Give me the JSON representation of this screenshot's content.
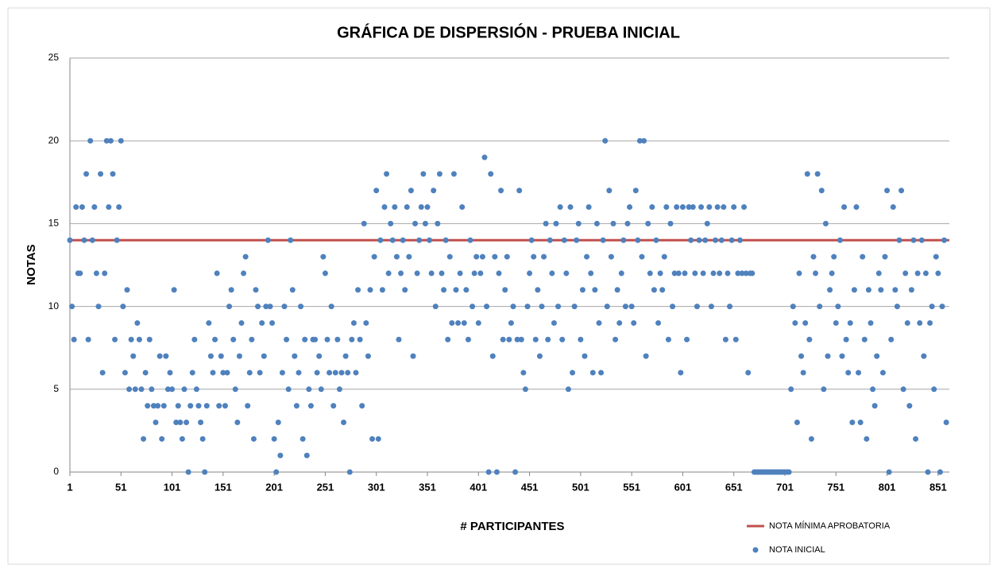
{
  "chart_data": {
    "type": "scatter",
    "title": "GRÁFICA DE DISPERSIÓN  - PRUEBA INICIAL",
    "x_label": "# PARTICIPANTES",
    "y_label": "NOTAS",
    "xlim": [
      1,
      862
    ],
    "ylim": [
      0,
      25
    ],
    "xticks": [
      1,
      51,
      101,
      151,
      201,
      251,
      301,
      351,
      401,
      451,
      501,
      551,
      601,
      651,
      701,
      751,
      801,
      851
    ],
    "yticks": [
      0,
      5,
      10,
      15,
      20,
      25
    ],
    "grid": true,
    "legend": "bottom-right",
    "series": [
      {
        "name": "NOTA MÍNIMA APROBATORIA",
        "type": "line",
        "color": "#c0504d",
        "x": [
          1,
          862
        ],
        "values": [
          14,
          14
        ]
      },
      {
        "name": "NOTA INICIAL",
        "type": "scatter",
        "color": "#4f81bd",
        "x": [
          1,
          3,
          5,
          7,
          9,
          11,
          13,
          15,
          17,
          19,
          21,
          23,
          25,
          27,
          29,
          31,
          33,
          35,
          37,
          39,
          41,
          43,
          45,
          47,
          49,
          51,
          53,
          55,
          57,
          59,
          61,
          63,
          65,
          67,
          69,
          71,
          73,
          75,
          77,
          79,
          81,
          83,
          85,
          87,
          89,
          91,
          93,
          95,
          97,
          99,
          101,
          103,
          105,
          107,
          109,
          111,
          113,
          115,
          117,
          119,
          121,
          123,
          125,
          127,
          129,
          131,
          133,
          135,
          137,
          139,
          141,
          143,
          145,
          147,
          149,
          151,
          153,
          155,
          157,
          159,
          161,
          163,
          165,
          167,
          169,
          171,
          173,
          175,
          177,
          179,
          181,
          183,
          185,
          187,
          189,
          191,
          193,
          195,
          197,
          199,
          201,
          203,
          205,
          207,
          209,
          211,
          213,
          215,
          217,
          219,
          221,
          223,
          225,
          227,
          229,
          231,
          233,
          235,
          237,
          239,
          241,
          243,
          245,
          247,
          249,
          251,
          253,
          255,
          257,
          259,
          261,
          263,
          265,
          267,
          269,
          271,
          273,
          275,
          277,
          279,
          281,
          283,
          285,
          287,
          289,
          291,
          293,
          295,
          297,
          299,
          301,
          303,
          305,
          307,
          309,
          311,
          313,
          315,
          317,
          319,
          321,
          323,
          325,
          327,
          329,
          331,
          333,
          335,
          337,
          339,
          341,
          343,
          345,
          347,
          349,
          351,
          353,
          355,
          357,
          359,
          361,
          363,
          365,
          367,
          369,
          371,
          373,
          375,
          377,
          379,
          381,
          383,
          385,
          387,
          389,
          391,
          393,
          395,
          397,
          399,
          401,
          403,
          405,
          407,
          409,
          411,
          413,
          415,
          417,
          419,
          421,
          423,
          425,
          427,
          429,
          431,
          433,
          435,
          437,
          439,
          441,
          443,
          445,
          447,
          449,
          451,
          453,
          455,
          457,
          459,
          461,
          463,
          465,
          467,
          469,
          471,
          473,
          475,
          477,
          479,
          481,
          483,
          485,
          487,
          489,
          491,
          493,
          495,
          497,
          499,
          501,
          503,
          505,
          507,
          509,
          511,
          513,
          515,
          517,
          519,
          521,
          523,
          525,
          527,
          529,
          531,
          533,
          535,
          537,
          539,
          541,
          543,
          545,
          547,
          549,
          551,
          553,
          555,
          557,
          559,
          561,
          563,
          565,
          567,
          569,
          571,
          573,
          575,
          577,
          579,
          581,
          583,
          585,
          587,
          589,
          591,
          593,
          595,
          597,
          599,
          601,
          603,
          605,
          607,
          609,
          611,
          613,
          615,
          617,
          619,
          621,
          623,
          625,
          627,
          629,
          631,
          633,
          635,
          637,
          639,
          641,
          643,
          645,
          647,
          649,
          651,
          653,
          655,
          657,
          659,
          661,
          663,
          665,
          667,
          669,
          671,
          673,
          675,
          677,
          679,
          681,
          683,
          685,
          687,
          689,
          691,
          693,
          695,
          697,
          699,
          701,
          703,
          705,
          707,
          709,
          711,
          713,
          715,
          717,
          719,
          721,
          723,
          725,
          727,
          729,
          731,
          733,
          735,
          737,
          739,
          741,
          743,
          745,
          747,
          749,
          751,
          753,
          755,
          757,
          759,
          761,
          763,
          765,
          767,
          769,
          771,
          773,
          775,
          777,
          779,
          781,
          783,
          785,
          787,
          789,
          791,
          793,
          795,
          797,
          799,
          801,
          803,
          805,
          807,
          809,
          811,
          813,
          815,
          817,
          819,
          821,
          823,
          825,
          827,
          829,
          831,
          833,
          835,
          837,
          839,
          841,
          843,
          845,
          847,
          849,
          851,
          853,
          855,
          857,
          859
        ],
        "values": [
          14,
          10,
          8,
          16,
          12,
          12,
          16,
          14,
          18,
          8,
          20,
          14,
          16,
          12,
          10,
          18,
          6,
          12,
          20,
          16,
          20,
          18,
          8,
          14,
          16,
          20,
          10,
          6,
          11,
          5,
          8,
          7,
          5,
          9,
          8,
          5,
          2,
          6,
          4,
          8,
          5,
          4,
          3,
          4,
          7,
          2,
          4,
          7,
          5,
          6,
          5,
          11,
          3,
          4,
          3,
          2,
          5,
          3,
          0,
          4,
          6,
          8,
          5,
          4,
          3,
          2,
          0,
          4,
          9,
          7,
          6,
          8,
          12,
          4,
          7,
          6,
          4,
          6,
          10,
          11,
          8,
          5,
          3,
          7,
          9,
          12,
          13,
          4,
          6,
          8,
          2,
          11,
          10,
          6,
          9,
          7,
          10,
          14,
          10,
          9,
          2,
          0,
          3,
          1,
          6,
          10,
          8,
          5,
          14,
          11,
          7,
          4,
          6,
          10,
          2,
          8,
          1,
          5,
          4,
          8,
          8,
          6,
          7,
          5,
          13,
          12,
          8,
          6,
          10,
          4,
          6,
          8,
          5,
          6,
          3,
          7,
          6,
          0,
          8,
          9,
          6,
          11,
          8,
          4,
          15,
          9,
          7,
          11,
          2,
          13,
          17,
          2,
          14,
          11,
          16,
          18,
          12,
          15,
          14,
          16,
          13,
          8,
          12,
          14,
          11,
          16,
          13,
          17,
          7,
          15,
          12,
          14,
          16,
          18,
          15,
          16,
          14,
          12,
          17,
          10,
          15,
          18,
          12,
          11,
          14,
          8,
          13,
          9,
          18,
          11,
          9,
          12,
          16,
          9,
          11,
          8,
          14,
          10,
          12,
          13,
          9,
          12,
          13,
          19,
          10,
          0,
          18,
          7,
          13,
          0,
          12,
          17,
          8,
          11,
          13,
          8,
          9,
          10,
          0,
          8,
          17,
          8,
          6,
          5,
          10,
          12,
          14,
          13,
          8,
          11,
          7,
          10,
          13,
          15,
          8,
          14,
          12,
          9,
          15,
          10,
          16,
          8,
          14,
          12,
          5,
          16,
          6,
          10,
          14,
          15,
          8,
          11,
          7,
          13,
          16,
          12,
          6,
          11,
          15,
          9,
          6,
          14,
          20,
          10,
          17,
          13,
          15,
          8,
          11,
          9,
          12,
          14,
          10,
          15,
          16,
          10,
          9,
          17,
          14,
          20,
          13,
          20,
          7,
          15,
          12,
          16,
          11,
          14,
          9,
          12,
          11,
          13,
          16,
          8,
          15,
          10,
          12,
          16,
          12,
          6,
          16,
          12,
          8,
          16,
          14,
          16,
          12,
          10,
          14,
          16,
          12,
          14,
          15,
          16,
          10,
          12,
          14,
          16,
          12,
          14,
          16,
          8,
          12,
          10,
          14,
          16,
          8,
          12,
          14,
          12,
          16,
          12,
          6,
          12,
          12,
          0,
          0,
          0,
          0,
          0,
          0,
          0,
          0,
          0,
          0,
          0,
          0,
          0,
          0,
          0,
          0,
          0,
          0,
          5,
          10,
          9,
          3,
          12,
          7,
          6,
          9,
          18,
          8,
          2,
          13,
          12,
          18,
          10,
          17,
          5,
          15,
          7,
          11,
          12,
          13,
          9,
          10,
          14,
          7,
          16,
          8,
          6,
          9,
          3,
          11,
          16,
          6,
          3,
          13,
          8,
          2,
          11,
          9,
          5,
          4,
          7,
          12,
          11,
          6,
          13,
          17,
          0,
          8,
          16,
          11,
          10,
          14,
          17,
          5,
          12,
          9,
          4,
          11,
          14,
          2,
          12,
          9,
          14,
          7,
          12,
          0,
          9,
          10,
          5,
          13,
          12,
          0,
          10,
          14,
          3
        ]
      }
    ]
  }
}
